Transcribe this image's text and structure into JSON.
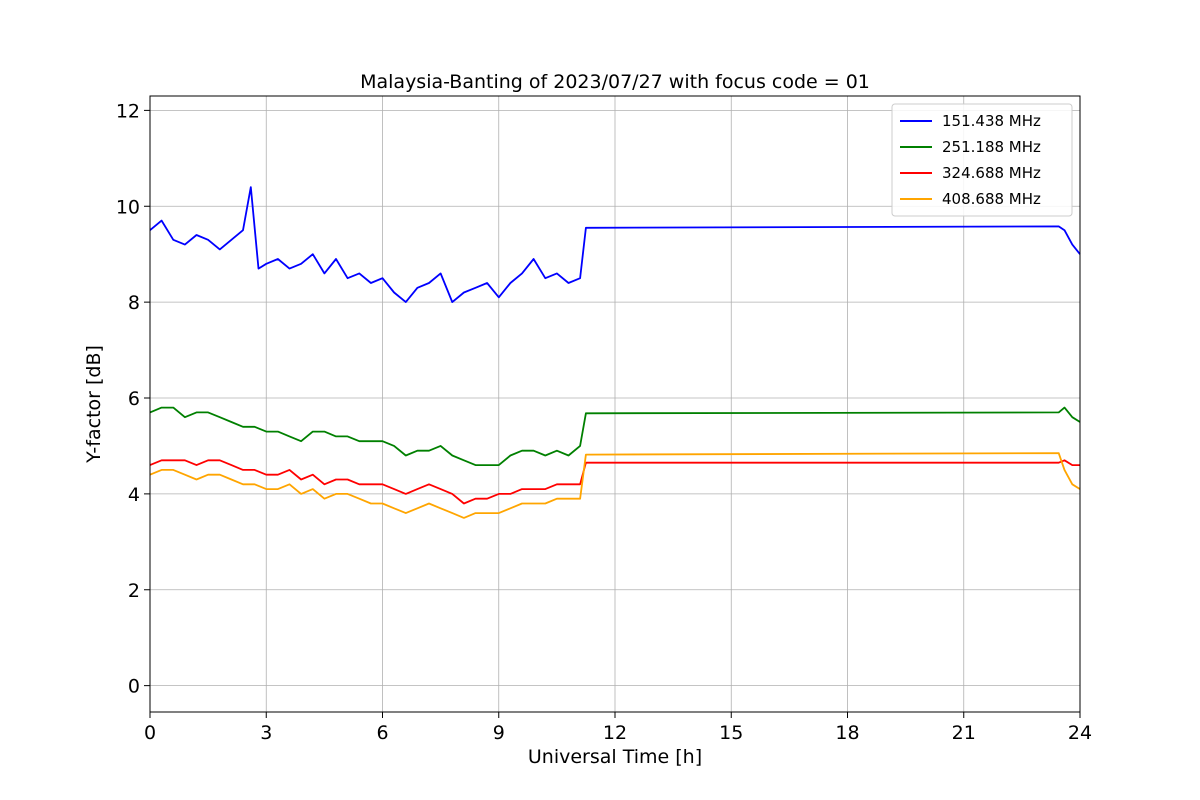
{
  "chart_data": {
    "type": "line",
    "title": "Malaysia-Banting of 2023/07/27 with focus code = 01",
    "xlabel": "Universal Time [h]",
    "ylabel": "Y-factor [dB]",
    "xlim": [
      0,
      24
    ],
    "ylim": [
      -0.55,
      12.3
    ],
    "xticks": [
      0,
      3,
      6,
      9,
      12,
      15,
      18,
      21,
      24
    ],
    "yticks": [
      0,
      2,
      4,
      6,
      8,
      10,
      12
    ],
    "grid": true,
    "legend_position": "top-right",
    "series": [
      {
        "name": "151.438 MHz",
        "color": "#0000ff",
        "x": [
          0,
          0.3,
          0.6,
          0.9,
          1.2,
          1.5,
          1.8,
          2.1,
          2.4,
          2.6,
          2.8,
          3.0,
          3.3,
          3.6,
          3.9,
          4.2,
          4.5,
          4.8,
          5.1,
          5.4,
          5.7,
          6.0,
          6.3,
          6.6,
          6.9,
          7.2,
          7.5,
          7.8,
          8.1,
          8.4,
          8.7,
          9.0,
          9.3,
          9.6,
          9.9,
          10.2,
          10.5,
          10.8,
          11.1,
          11.25,
          23.45,
          23.6,
          23.8,
          24.0
        ],
        "y": [
          9.5,
          9.7,
          9.3,
          9.2,
          9.4,
          9.3,
          9.1,
          9.3,
          9.5,
          10.4,
          8.7,
          8.8,
          8.9,
          8.7,
          8.8,
          9.0,
          8.6,
          8.9,
          8.5,
          8.6,
          8.4,
          8.5,
          8.2,
          8.0,
          8.3,
          8.4,
          8.6,
          8.0,
          8.2,
          8.3,
          8.4,
          8.1,
          8.4,
          8.6,
          8.9,
          8.5,
          8.6,
          8.4,
          8.5,
          9.55,
          9.58,
          9.5,
          9.2,
          9.0
        ]
      },
      {
        "name": "251.188 MHz",
        "color": "#008000",
        "x": [
          0,
          0.3,
          0.6,
          0.9,
          1.2,
          1.5,
          1.8,
          2.1,
          2.4,
          2.7,
          3.0,
          3.3,
          3.6,
          3.9,
          4.2,
          4.5,
          4.8,
          5.1,
          5.4,
          5.7,
          6.0,
          6.3,
          6.6,
          6.9,
          7.2,
          7.5,
          7.8,
          8.1,
          8.4,
          8.7,
          9.0,
          9.3,
          9.6,
          9.9,
          10.2,
          10.5,
          10.8,
          11.1,
          11.25,
          23.45,
          23.6,
          23.8,
          24.0
        ],
        "y": [
          5.7,
          5.8,
          5.8,
          5.6,
          5.7,
          5.7,
          5.6,
          5.5,
          5.4,
          5.4,
          5.3,
          5.3,
          5.2,
          5.1,
          5.3,
          5.3,
          5.2,
          5.2,
          5.1,
          5.1,
          5.1,
          5.0,
          4.8,
          4.9,
          4.9,
          5.0,
          4.8,
          4.7,
          4.6,
          4.6,
          4.6,
          4.8,
          4.9,
          4.9,
          4.8,
          4.9,
          4.8,
          5.0,
          5.68,
          5.7,
          5.8,
          5.6,
          5.5
        ]
      },
      {
        "name": "324.688 MHz",
        "color": "#ff0000",
        "x": [
          0,
          0.3,
          0.6,
          0.9,
          1.2,
          1.5,
          1.8,
          2.1,
          2.4,
          2.7,
          3.0,
          3.3,
          3.6,
          3.9,
          4.2,
          4.5,
          4.8,
          5.1,
          5.4,
          5.7,
          6.0,
          6.3,
          6.6,
          6.9,
          7.2,
          7.5,
          7.8,
          8.1,
          8.4,
          8.7,
          9.0,
          9.3,
          9.6,
          9.9,
          10.2,
          10.5,
          10.8,
          11.1,
          11.25,
          23.45,
          23.6,
          23.8,
          24.0
        ],
        "y": [
          4.6,
          4.7,
          4.7,
          4.7,
          4.6,
          4.7,
          4.7,
          4.6,
          4.5,
          4.5,
          4.4,
          4.4,
          4.5,
          4.3,
          4.4,
          4.2,
          4.3,
          4.3,
          4.2,
          4.2,
          4.2,
          4.1,
          4.0,
          4.1,
          4.2,
          4.1,
          4.0,
          3.8,
          3.9,
          3.9,
          4.0,
          4.0,
          4.1,
          4.1,
          4.1,
          4.2,
          4.2,
          4.2,
          4.65,
          4.65,
          4.7,
          4.6,
          4.6
        ]
      },
      {
        "name": "408.688 MHz",
        "color": "#ffa500",
        "x": [
          0,
          0.3,
          0.6,
          0.9,
          1.2,
          1.5,
          1.8,
          2.1,
          2.4,
          2.7,
          3.0,
          3.3,
          3.6,
          3.9,
          4.2,
          4.5,
          4.8,
          5.1,
          5.4,
          5.7,
          6.0,
          6.3,
          6.6,
          6.9,
          7.2,
          7.5,
          7.8,
          8.1,
          8.4,
          8.7,
          9.0,
          9.3,
          9.6,
          9.9,
          10.2,
          10.5,
          10.8,
          11.1,
          11.25,
          23.45,
          23.6,
          23.8,
          24.0
        ],
        "y": [
          4.4,
          4.5,
          4.5,
          4.4,
          4.3,
          4.4,
          4.4,
          4.3,
          4.2,
          4.2,
          4.1,
          4.1,
          4.2,
          4.0,
          4.1,
          3.9,
          4.0,
          4.0,
          3.9,
          3.8,
          3.8,
          3.7,
          3.6,
          3.7,
          3.8,
          3.7,
          3.6,
          3.5,
          3.6,
          3.6,
          3.6,
          3.7,
          3.8,
          3.8,
          3.8,
          3.9,
          3.9,
          3.9,
          4.82,
          4.85,
          4.5,
          4.2,
          4.1
        ]
      }
    ],
    "annotations": []
  }
}
